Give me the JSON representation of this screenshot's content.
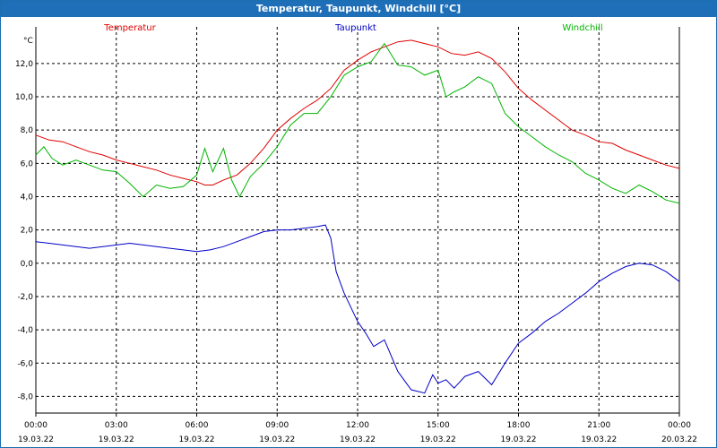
{
  "window": {
    "title": "Temperatur, Taupunkt, Windchill [°C]"
  },
  "chart_data": {
    "type": "line",
    "title": "Temperatur, Taupunkt, Windchill [°C]",
    "ylabel": "°C",
    "xlabel": "",
    "xlim": [
      0,
      24
    ],
    "ylim": [
      -9,
      14.2
    ],
    "grid": true,
    "y_ticks": [
      "-8,0",
      "-6,0",
      "-4,0",
      "-2,0",
      "0,0",
      "2,0",
      "4,0",
      "6,0",
      "8,0",
      "10,0",
      "12,0"
    ],
    "y_tick_values": [
      -8,
      -6,
      -4,
      -2,
      0,
      2,
      4,
      6,
      8,
      10,
      12
    ],
    "x_ticks": [
      {
        "x": 0,
        "time": "00:00",
        "date": "19.03.22"
      },
      {
        "x": 3,
        "time": "03:00",
        "date": "19.03.22"
      },
      {
        "x": 6,
        "time": "06:00",
        "date": "19.03.22"
      },
      {
        "x": 9,
        "time": "09:00",
        "date": "19.03.22"
      },
      {
        "x": 12,
        "time": "12:00",
        "date": "19.03.22"
      },
      {
        "x": 15,
        "time": "15:00",
        "date": "19.03.22"
      },
      {
        "x": 18,
        "time": "18:00",
        "date": "19.03.22"
      },
      {
        "x": 21,
        "time": "21:00",
        "date": "19.03.22"
      },
      {
        "x": 24,
        "time": "00:00",
        "date": "20.03.22"
      }
    ],
    "series": [
      {
        "name": "Temperatur",
        "color": "#e00000",
        "legend_position": "top-left",
        "x": [
          0,
          0.5,
          1,
          1.5,
          2,
          2.5,
          3,
          3.5,
          4,
          4.5,
          5,
          5.5,
          6,
          6.3,
          6.6,
          7,
          7.5,
          8,
          8.5,
          9,
          9.5,
          10,
          10.5,
          11,
          11.5,
          12,
          12.5,
          13,
          13.5,
          14,
          14.5,
          15,
          15.5,
          16,
          16.5,
          17,
          17.5,
          18,
          18.5,
          19,
          19.5,
          20,
          20.5,
          21,
          21.5,
          22,
          22.5,
          23,
          23.5,
          24
        ],
        "y": [
          7.7,
          7.4,
          7.3,
          7.0,
          6.7,
          6.5,
          6.2,
          6.0,
          5.8,
          5.6,
          5.3,
          5.1,
          4.9,
          4.7,
          4.7,
          5.0,
          5.3,
          6.0,
          6.9,
          8.0,
          8.7,
          9.3,
          9.8,
          10.5,
          11.6,
          12.2,
          12.7,
          13.0,
          13.3,
          13.4,
          13.2,
          13.0,
          12.6,
          12.5,
          12.7,
          12.3,
          11.5,
          10.5,
          9.8,
          9.2,
          8.6,
          8.0,
          7.7,
          7.3,
          7.2,
          6.8,
          6.5,
          6.2,
          5.9,
          5.7
        ]
      },
      {
        "name": "Taupunkt",
        "color": "#0000c8",
        "legend_position": "top-center",
        "x": [
          0,
          0.5,
          1,
          1.5,
          2,
          2.5,
          3,
          3.5,
          4,
          4.5,
          5,
          5.5,
          6,
          6.5,
          7,
          7.5,
          8,
          8.5,
          9,
          9.5,
          10,
          10.5,
          10.8,
          11,
          11.2,
          11.5,
          12,
          12.3,
          12.6,
          13,
          13.5,
          14,
          14.5,
          14.8,
          15,
          15.3,
          15.6,
          16,
          16.5,
          17,
          17.5,
          18,
          18.5,
          19,
          19.5,
          20,
          20.5,
          21,
          21.5,
          22,
          22.5,
          23,
          23.5,
          24
        ],
        "y": [
          1.3,
          1.2,
          1.1,
          1.0,
          0.9,
          1.0,
          1.1,
          1.2,
          1.1,
          1.0,
          0.9,
          0.8,
          0.7,
          0.8,
          1.0,
          1.3,
          1.6,
          1.9,
          2.0,
          2.0,
          2.1,
          2.2,
          2.3,
          1.5,
          -0.5,
          -1.8,
          -3.5,
          -4.2,
          -5.0,
          -4.6,
          -6.5,
          -7.6,
          -7.8,
          -6.7,
          -7.2,
          -7.0,
          -7.5,
          -6.8,
          -6.5,
          -7.3,
          -6.0,
          -4.8,
          -4.2,
          -3.5,
          -3.0,
          -2.4,
          -1.8,
          -1.1,
          -0.6,
          -0.2,
          0.0,
          -0.1,
          -0.5,
          -1.1
        ]
      },
      {
        "name": "Windchill",
        "color": "#00b400",
        "legend_position": "top-right",
        "x": [
          0,
          0.3,
          0.6,
          1,
          1.5,
          2,
          2.5,
          3,
          3.5,
          4,
          4.5,
          5,
          5.5,
          6,
          6.3,
          6.6,
          7,
          7.3,
          7.6,
          8,
          8.5,
          9,
          9.5,
          10,
          10.5,
          11,
          11.5,
          12,
          12.5,
          13,
          13.5,
          14,
          14.5,
          15,
          15.3,
          15.6,
          16,
          16.5,
          17,
          17.5,
          18,
          18.5,
          19,
          19.5,
          20,
          20.5,
          21,
          21.5,
          22,
          22.5,
          23,
          23.5,
          24
        ],
        "y": [
          6.5,
          7.0,
          6.3,
          5.9,
          6.2,
          5.9,
          5.6,
          5.5,
          4.8,
          4.0,
          4.7,
          4.5,
          4.6,
          5.3,
          6.9,
          5.5,
          6.9,
          5.0,
          4.0,
          5.2,
          6.0,
          7.0,
          8.3,
          9.0,
          9.0,
          10.0,
          11.3,
          11.8,
          12.1,
          13.2,
          11.9,
          11.8,
          11.3,
          11.6,
          10.0,
          10.3,
          10.6,
          11.2,
          10.8,
          9.0,
          8.2,
          7.6,
          7.0,
          6.5,
          6.1,
          5.4,
          5.0,
          4.5,
          4.2,
          4.7,
          4.3,
          3.8,
          3.6
        ]
      }
    ]
  }
}
